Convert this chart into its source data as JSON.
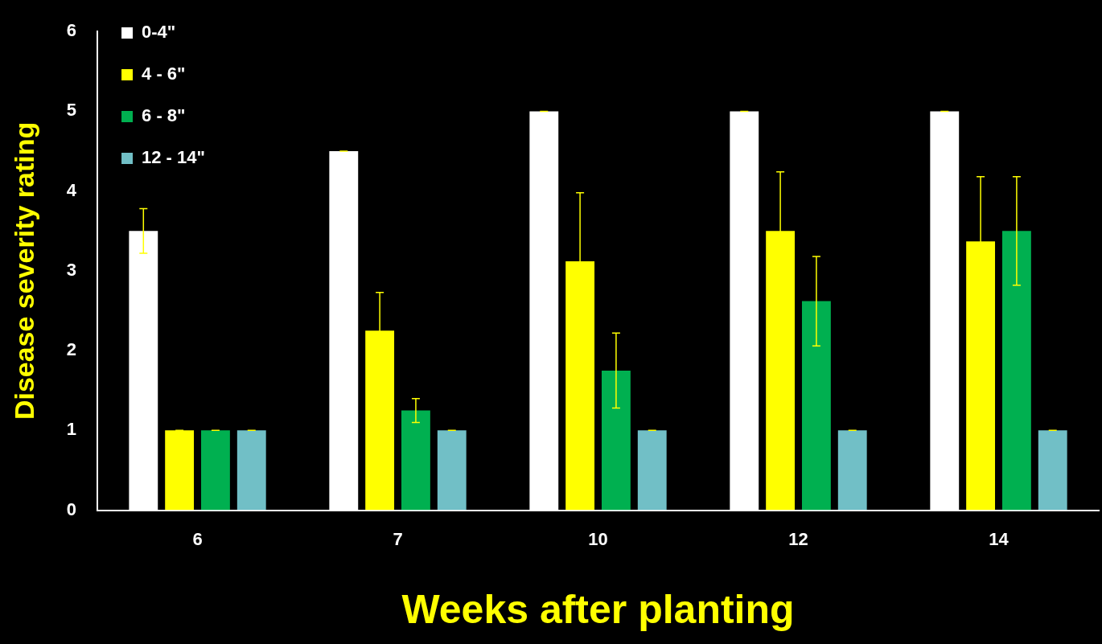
{
  "chart_data": {
    "type": "bar",
    "xlabel": "Weeks after planting",
    "ylabel": "Disease severity rating",
    "categories": [
      "6",
      "7",
      "10",
      "12",
      "14"
    ],
    "series": [
      {
        "name": "0-4\"",
        "color": "#ffffff",
        "values": [
          3.5,
          4.5,
          5,
          5,
          5
        ],
        "errors": [
          0.28,
          0,
          0,
          0,
          0
        ]
      },
      {
        "name": "4 - 6\"",
        "color": "#ffff00",
        "values": [
          1,
          2.25,
          3.12,
          3.5,
          3.37
        ],
        "errors": [
          0,
          0.48,
          0.86,
          0.74,
          0.81
        ]
      },
      {
        "name": "6 - 8\"",
        "color": "#00b050",
        "values": [
          1,
          1.25,
          1.75,
          2.62,
          3.5
        ],
        "errors": [
          0,
          0.15,
          0.47,
          0.56,
          0.68
        ]
      },
      {
        "name": "12 - 14\"",
        "color": "#71bfc6",
        "values": [
          1,
          1,
          1,
          1,
          1
        ],
        "errors": [
          0,
          0,
          0,
          0,
          0
        ]
      }
    ],
    "ylim": [
      0,
      6
    ],
    "yticks": [
      0,
      1,
      2,
      3,
      4,
      5,
      6
    ],
    "grid": false,
    "legend": "top left"
  }
}
